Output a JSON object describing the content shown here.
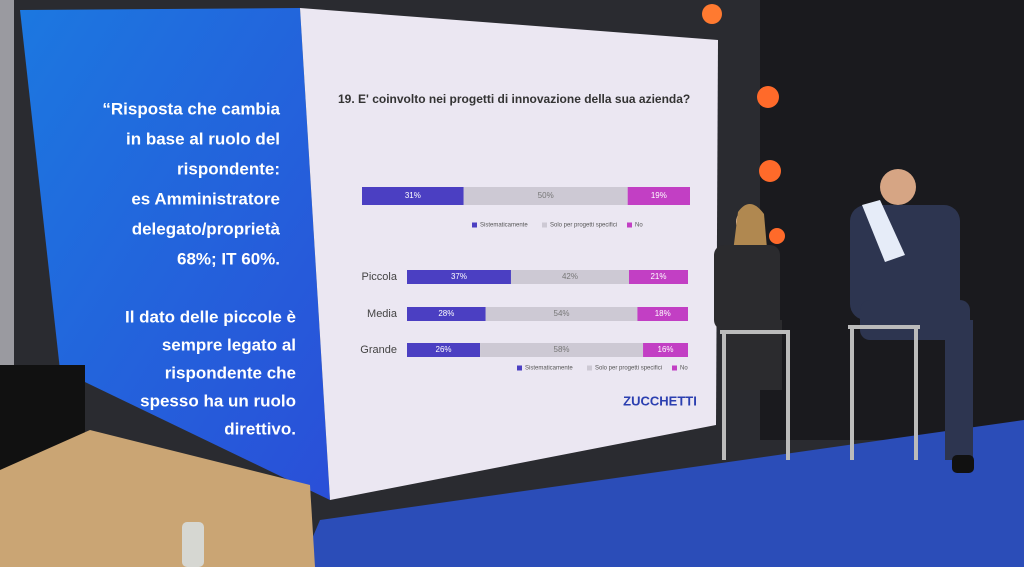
{
  "left_panel": {
    "lines": [
      "“Risposta che cambia",
      "in base al ruolo del",
      "rispondente:",
      "es Amministratore",
      "delegato/proprietà",
      "68%; IT 60%."
    ],
    "note": [
      "Il dato delle piccole è",
      "sempre legato al",
      "rispondente che",
      "spesso ha un ruolo",
      "direttivo."
    ]
  },
  "slide": {
    "logo": "ZUCCHETTI"
  },
  "chart_data": [
    {
      "type": "bar",
      "orientation": "horizontal",
      "stacked": true,
      "title": "19. E' coinvolto nei progetti di innovazione della sua azienda?",
      "categories": [
        null
      ],
      "xlim": [
        0,
        100
      ],
      "series": [
        {
          "name": "Sistematicamente",
          "color": "#4b3fc2",
          "values": [
            31
          ],
          "value_labels": [
            "31%"
          ]
        },
        {
          "name": "Solo per progetti specifici",
          "color": "#cdc9d4",
          "values": [
            50
          ],
          "value_labels": [
            "50%"
          ]
        },
        {
          "name": "No",
          "color": "#c23fc4",
          "values": [
            19
          ],
          "value_labels": [
            "19%"
          ]
        }
      ]
    },
    {
      "type": "bar",
      "orientation": "horizontal",
      "stacked": true,
      "categories": [
        "Piccola",
        "Media",
        "Grande"
      ],
      "xlim": [
        0,
        100
      ],
      "series": [
        {
          "name": "Sistematicamente",
          "color": "#4b3fc2",
          "values": [
            37,
            28,
            26
          ],
          "value_labels": [
            "37%",
            "28%",
            "26%"
          ]
        },
        {
          "name": "Solo per progetti specifici",
          "color": "#cdc9d4",
          "values": [
            42,
            54,
            58
          ],
          "value_labels": [
            "42%",
            "54%",
            "58%"
          ]
        },
        {
          "name": "No",
          "color": "#c23fc4",
          "values": [
            21,
            18,
            16
          ],
          "value_labels": [
            "21%",
            "18%",
            "16%"
          ]
        }
      ]
    }
  ]
}
